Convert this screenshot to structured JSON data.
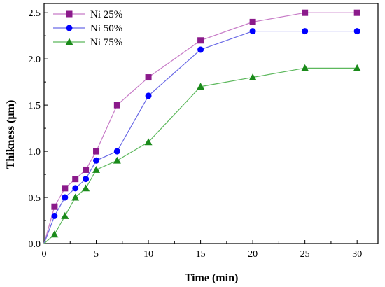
{
  "chart_data": {
    "type": "line",
    "xlabel": "Time (min)",
    "ylabel": "Thikness (µm)",
    "xlim": [
      0,
      32
    ],
    "ylim": [
      0,
      2.6
    ],
    "xticks": [
      0,
      5,
      10,
      15,
      20,
      25,
      30
    ],
    "yticks": [
      0.0,
      0.5,
      1.0,
      1.5,
      2.0,
      2.5
    ],
    "xtick_labels": [
      "0",
      "5",
      "10",
      "15",
      "20",
      "25",
      "30"
    ],
    "ytick_labels": [
      "0.0",
      "0.5",
      "1.0",
      "1.5",
      "2.0",
      "2.5"
    ],
    "grid": false,
    "legend": "top-left",
    "series": [
      {
        "name": "Ni 25%",
        "marker": "square",
        "color": "#8B1A8B",
        "line_color": "#C77BC7",
        "x": [
          0,
          1,
          2,
          3,
          4,
          5,
          7,
          10,
          15,
          20,
          25,
          30
        ],
        "y": [
          0,
          0.4,
          0.6,
          0.7,
          0.8,
          1.0,
          1.5,
          1.8,
          2.2,
          2.4,
          2.5,
          2.5
        ]
      },
      {
        "name": "Ni 50%",
        "marker": "circle",
        "color": "#0000FF",
        "line_color": "#6A6AE6",
        "x": [
          0,
          1,
          2,
          3,
          4,
          5,
          7,
          10,
          15,
          20,
          25,
          30
        ],
        "y": [
          0,
          0.3,
          0.5,
          0.6,
          0.7,
          0.9,
          1.0,
          1.6,
          2.1,
          2.3,
          2.3,
          2.3
        ]
      },
      {
        "name": "Ni 75%",
        "marker": "triangle",
        "color": "#1A8A1A",
        "line_color": "#5CB85C",
        "x": [
          0,
          1,
          2,
          3,
          4,
          5,
          7,
          10,
          15,
          20,
          25,
          30
        ],
        "y": [
          0,
          0.1,
          0.3,
          0.5,
          0.6,
          0.8,
          0.9,
          1.1,
          1.7,
          1.8,
          1.9,
          1.9
        ]
      }
    ]
  }
}
